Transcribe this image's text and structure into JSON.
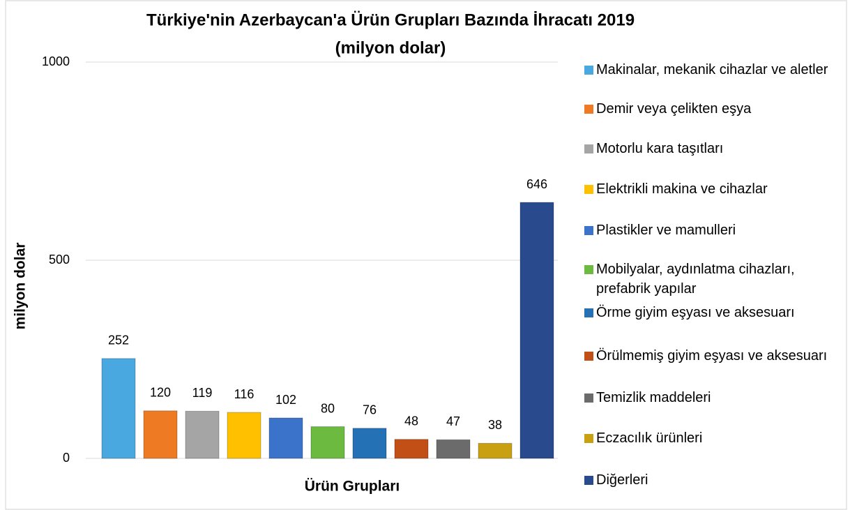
{
  "chart_data": {
    "type": "bar",
    "title": [
      "Türkiye'nin Azerbaycan'a  Ürün Grupları Bazında İhracatı 2019",
      "(milyon dolar)"
    ],
    "ylabel": "milyon dolar",
    "xlabel": "Ürün Grupları",
    "categories": [
      "Makinalar, mekanik cihazlar ve aletler",
      "Demir veya çelikten eşya",
      "Motorlu kara taşıtları",
      "Elektrikli makina ve cihazlar",
      "Plastikler ve mamulleri",
      "Mobilyalar, aydınlatma cihazları, prefabrik yapılar",
      "Örme giyim eşyası ve aksesuarı",
      "Örülmemiş giyim eşyası ve aksesuarı",
      "Temizlik maddeleri",
      "Eczacılık ürünleri",
      "Diğerleri"
    ],
    "values": [
      252,
      120,
      119,
      116,
      102,
      80,
      76,
      48,
      47,
      38,
      646
    ],
    "colors": [
      "#4aa8e0",
      "#ee7a23",
      "#a5a5a5",
      "#ffc000",
      "#3a73c9",
      "#6cba3f",
      "#2571b5",
      "#c24f16",
      "#6b6b6b",
      "#c9a012",
      "#2a4a8e"
    ],
    "ylim": [
      0,
      1000
    ],
    "yticks": [
      0,
      500,
      1000
    ],
    "grid": true,
    "legend": "right"
  }
}
